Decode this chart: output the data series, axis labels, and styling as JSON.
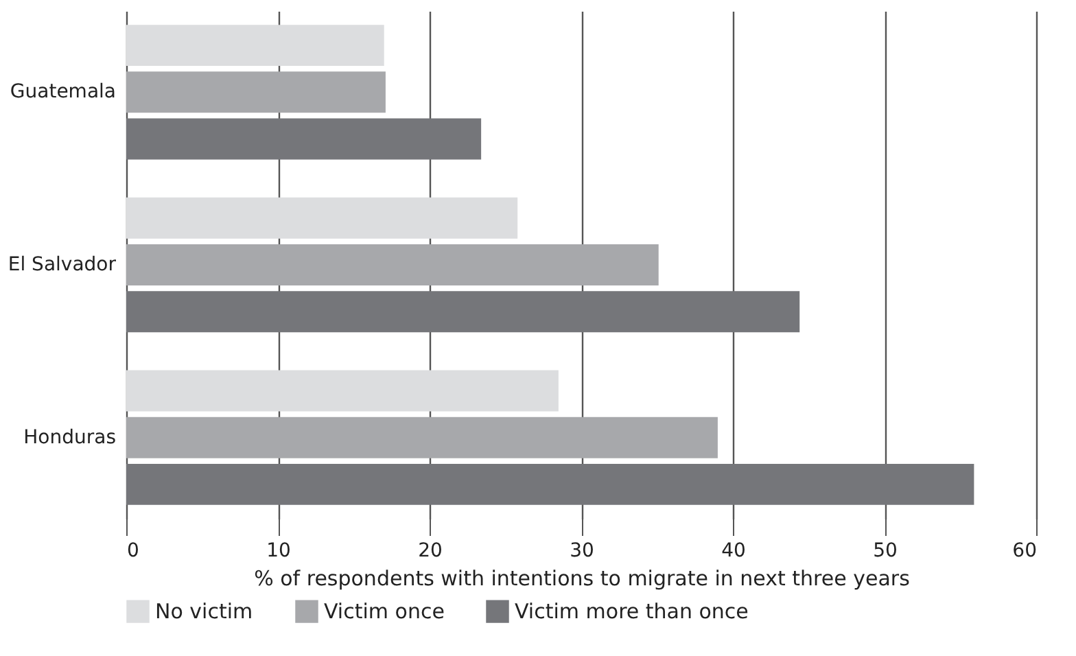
{
  "chart_data": {
    "type": "bar",
    "orientation": "horizontal",
    "xlabel": "% of respondents with intentions to migrate in next three years",
    "categories": [
      "Guatemala",
      "El Salvador",
      "Honduras"
    ],
    "series": [
      {
        "name": "No victim",
        "color": "#dcdddf",
        "values": [
          17.0,
          25.8,
          28.5
        ]
      },
      {
        "name": "Victim once",
        "color": "#a7a8ab",
        "values": [
          17.1,
          35.1,
          39.0
        ]
      },
      {
        "name": "Victim more than once",
        "color": "#75767a",
        "values": [
          23.4,
          44.4,
          55.9
        ]
      }
    ],
    "xlim": [
      0,
      60
    ],
    "xticks": [
      0,
      10,
      20,
      30,
      40,
      50,
      60
    ],
    "grid": "x",
    "legend": "bottom"
  }
}
